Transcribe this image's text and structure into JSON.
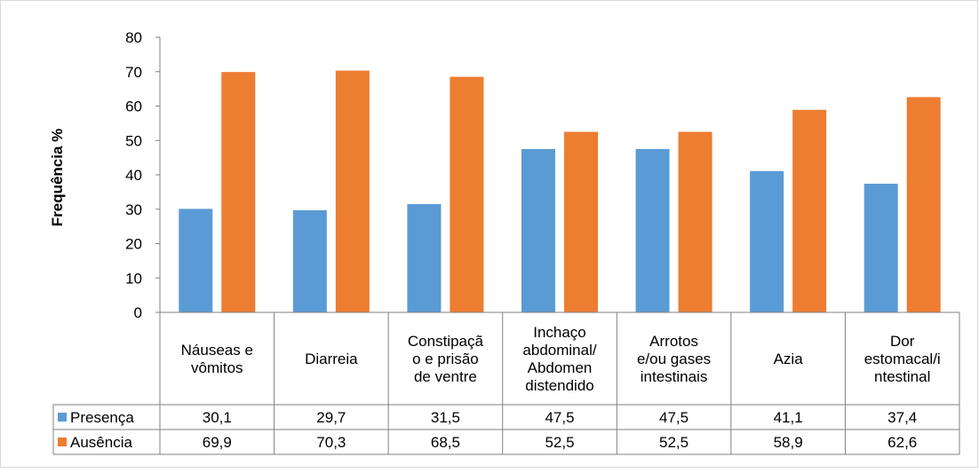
{
  "chart_data": {
    "type": "bar",
    "title": "",
    "xlabel": "",
    "ylabel": "Frequência %",
    "ylim": [
      0,
      80
    ],
    "yticks": [
      0,
      10,
      20,
      30,
      40,
      50,
      60,
      70,
      80
    ],
    "grid": false,
    "legend": "data-table",
    "categories": [
      [
        "Náuseas e",
        "vômitos"
      ],
      [
        "Diarreia"
      ],
      [
        "Constipaçã",
        "o e prisão",
        "de ventre"
      ],
      [
        "Inchaço",
        "abdominal/",
        "Abdomen",
        "distendido"
      ],
      [
        "Arrotos",
        "e/ou gases",
        "intestinais"
      ],
      [
        "Azia"
      ],
      [
        "Dor",
        "estomacal/i",
        "ntestinal"
      ]
    ],
    "series": [
      {
        "name": "Presença",
        "color": "#5b9bd5",
        "values": [
          30.1,
          29.7,
          31.5,
          47.5,
          47.5,
          41.1,
          37.4
        ],
        "labels": [
          "30,1",
          "29,7",
          "31,5",
          "47,5",
          "47,5",
          "41,1",
          "37,4"
        ]
      },
      {
        "name": "Ausência",
        "color": "#ed7d31",
        "values": [
          69.9,
          70.3,
          68.5,
          52.5,
          52.5,
          58.9,
          62.6
        ],
        "labels": [
          "69,9",
          "70,3",
          "68,5",
          "52,5",
          "52,5",
          "58,9",
          "62,6"
        ]
      }
    ]
  }
}
